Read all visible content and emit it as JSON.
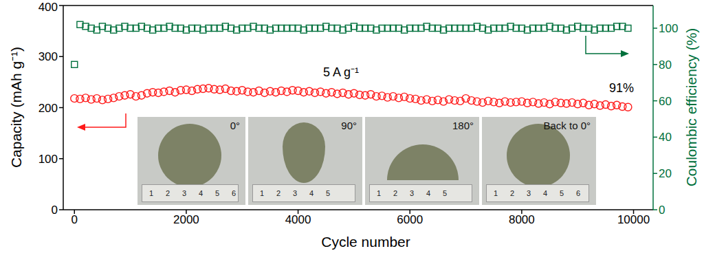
{
  "chart_data": {
    "type": "scatter",
    "x_label": "Cycle number",
    "y_label": "Capacity (mAh g⁻¹)",
    "y2_label": "Coulombic efficiency (%)",
    "xlim": [
      -200,
      10350
    ],
    "xticks": [
      0,
      2000,
      4000,
      6000,
      8000,
      10000
    ],
    "ylim": [
      0,
      400
    ],
    "yticks": [
      0,
      100,
      200,
      300,
      400
    ],
    "y2lim": [
      0,
      112.5
    ],
    "y2ticks": [
      0,
      20,
      40,
      60,
      80,
      100
    ],
    "grid": false,
    "x": [
      0,
      100,
      200,
      300,
      400,
      500,
      600,
      700,
      800,
      900,
      1000,
      1100,
      1200,
      1300,
      1400,
      1500,
      1600,
      1700,
      1800,
      1900,
      2000,
      2100,
      2200,
      2300,
      2400,
      2500,
      2600,
      2700,
      2800,
      2900,
      3000,
      3100,
      3200,
      3300,
      3400,
      3500,
      3600,
      3700,
      3800,
      3900,
      4000,
      4100,
      4200,
      4300,
      4400,
      4500,
      4600,
      4700,
      4800,
      4900,
      5000,
      5100,
      5200,
      5300,
      5400,
      5500,
      5600,
      5700,
      5800,
      5900,
      6000,
      6100,
      6200,
      6300,
      6400,
      6500,
      6600,
      6700,
      6800,
      6900,
      7000,
      7100,
      7200,
      7300,
      7400,
      7500,
      7600,
      7700,
      7800,
      7900,
      8000,
      8100,
      8200,
      8300,
      8400,
      8500,
      8600,
      8700,
      8800,
      8900,
      9000,
      9100,
      9200,
      9300,
      9400,
      9500,
      9600,
      9700,
      9800,
      9900
    ],
    "series": [
      {
        "color": "#ff1a1a",
        "marker": "circle",
        "values": [
          218,
          217,
          219,
          216,
          218,
          215,
          217,
          219,
          222,
          224,
          226,
          222,
          224,
          228,
          230,
          229,
          231,
          233,
          230,
          234,
          235,
          233,
          236,
          237,
          238,
          236,
          235,
          237,
          233,
          232,
          234,
          231,
          230,
          233,
          229,
          232,
          230,
          233,
          231,
          234,
          233,
          230,
          232,
          229,
          231,
          228,
          230,
          227,
          229,
          226,
          228,
          225,
          224,
          226,
          222,
          223,
          220,
          222,
          219,
          221,
          218,
          217,
          214,
          216,
          213,
          215,
          212,
          216,
          214,
          213,
          218,
          214,
          212,
          210,
          213,
          211,
          209,
          212,
          210,
          211,
          212,
          209,
          211,
          208,
          210,
          207,
          211,
          209,
          208,
          210,
          207,
          209,
          205,
          207,
          204,
          206,
          203,
          205,
          202,
          201
        ]
      },
      {
        "axis": "y2",
        "color": "#00703c",
        "marker": "square",
        "values": [
          80,
          102,
          101,
          100,
          99,
          101,
          100,
          99,
          100,
          101,
          100,
          100,
          101,
          100,
          99,
          100,
          100,
          101,
          100,
          100,
          99,
          100,
          100,
          99,
          100,
          100,
          100,
          101,
          100,
          99,
          100,
          100,
          101,
          100,
          100,
          99,
          100,
          100,
          100,
          100,
          100,
          99,
          100,
          100,
          100,
          101,
          100,
          100,
          99,
          100,
          101,
          100,
          100,
          100,
          99,
          100,
          100,
          100,
          100,
          99,
          100,
          100,
          100,
          101,
          100,
          100,
          99,
          100,
          100,
          100,
          100,
          100,
          101,
          100,
          99,
          100,
          100,
          100,
          101,
          100,
          100,
          99,
          100,
          100,
          100,
          101,
          100,
          100,
          99,
          100,
          101,
          100,
          100,
          99,
          100,
          100,
          100,
          101,
          101,
          100
        ]
      }
    ],
    "annotations": [
      "5 A g⁻¹",
      "91%"
    ],
    "insets": [
      {
        "label": "0°",
        "ruler": [
          1,
          2,
          3,
          4,
          5,
          6
        ]
      },
      {
        "label": "90°",
        "ruler": [
          1,
          2,
          3,
          4,
          5
        ]
      },
      {
        "label": "180°",
        "ruler": [
          1,
          2,
          3,
          4,
          5
        ]
      },
      {
        "label": "Back to 0°",
        "ruler": [
          1,
          2,
          3,
          4,
          5,
          6
        ]
      }
    ]
  }
}
